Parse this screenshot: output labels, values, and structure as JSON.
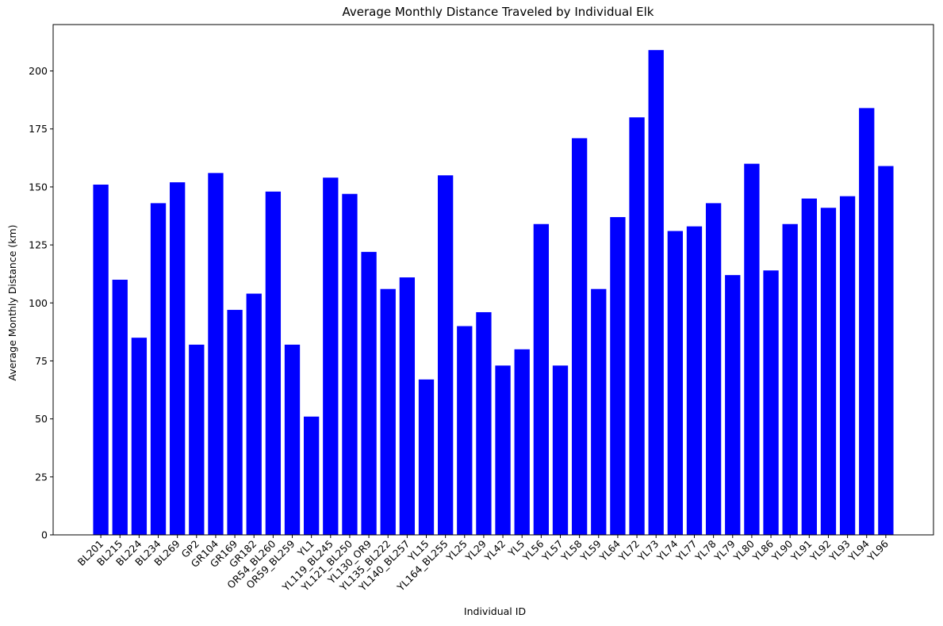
{
  "chart_data": {
    "type": "bar",
    "title": "Average Monthly Distance Traveled by Individual Elk",
    "xlabel": "Individual ID",
    "ylabel": "Average Monthly Distance (km)",
    "ylim": [
      0,
      220
    ],
    "yticks": [
      "0",
      "25",
      "50",
      "75",
      "100",
      "125",
      "150",
      "175",
      "200"
    ],
    "bar_color": "#0000ff",
    "grid": false,
    "legend": "none",
    "categories": [
      "BL201",
      "BL215",
      "BL224",
      "BL234",
      "BL269",
      "GP2",
      "GR104",
      "GR169",
      "GR182",
      "OR54_BL260",
      "OR59_BL259",
      "YL1",
      "YL119_BL245",
      "YL121_BL250",
      "YL130_OR9",
      "YL135_BL222",
      "YL140_BL257",
      "YL15",
      "YL164_BL255",
      "YL25",
      "YL29",
      "YL42",
      "YL5",
      "YL56",
      "YL57",
      "YL58",
      "YL59",
      "YL64",
      "YL72",
      "YL73",
      "YL74",
      "YL77",
      "YL78",
      "YL79",
      "YL80",
      "YL86",
      "YL90",
      "YL91",
      "YL92",
      "YL93",
      "YL94",
      "YL96"
    ],
    "values": [
      151,
      110,
      85,
      143,
      152,
      82,
      156,
      97,
      104,
      148,
      82,
      51,
      154,
      147,
      122,
      106,
      111,
      67,
      155,
      90,
      96,
      73,
      80,
      134,
      73,
      171,
      106,
      137,
      180,
      209,
      131,
      133,
      143,
      112,
      160,
      114,
      134,
      145,
      141,
      146,
      184,
      159
    ]
  }
}
